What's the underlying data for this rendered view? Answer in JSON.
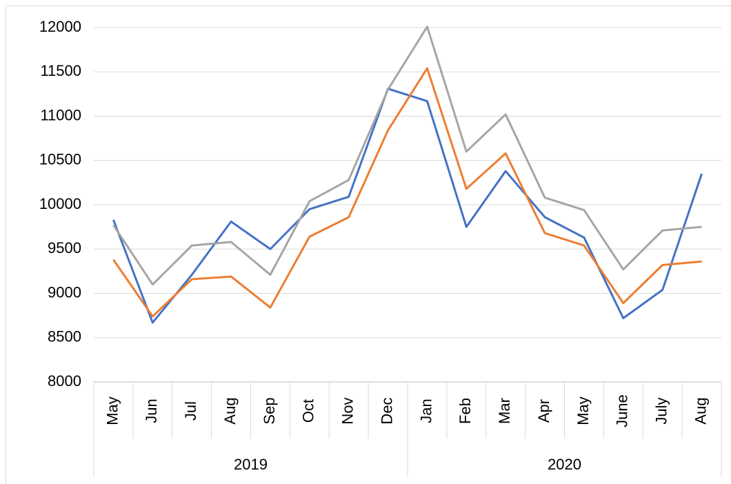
{
  "chart_data": {
    "type": "line",
    "categories": [
      "May",
      "Jun",
      "Jul",
      "Aug",
      "Sep",
      "Oct",
      "Nov",
      "Dec",
      "Jan",
      "Feb",
      "Mar",
      "Apr",
      "May",
      "June",
      "July",
      "Aug"
    ],
    "group_labels": [
      "2019",
      null,
      null,
      null,
      null,
      null,
      null,
      null,
      "2020",
      null,
      null,
      null,
      null,
      null,
      null,
      null
    ],
    "series": [
      {
        "color": "#4472c4",
        "values": [
          9830,
          8670,
          9210,
          9810,
          9500,
          9950,
          10090,
          11310,
          11170,
          9750,
          10380,
          9860,
          9630,
          8720,
          9040,
          10350
        ]
      },
      {
        "color": "#ed7d31",
        "values": [
          9380,
          8740,
          9160,
          9190,
          8840,
          9640,
          9860,
          10840,
          11540,
          10180,
          10580,
          9680,
          9540,
          8890,
          9320,
          9360
        ]
      },
      {
        "color": "#a5a5a5",
        "values": [
          9770,
          9100,
          9540,
          9580,
          9210,
          10040,
          10280,
          11300,
          12010,
          10600,
          11020,
          10080,
          9940,
          9270,
          9710,
          9750
        ]
      }
    ],
    "ylim": [
      8000,
      12000
    ],
    "yticks": [
      8000,
      8500,
      9000,
      9500,
      10000,
      10500,
      11000,
      11500,
      12000
    ],
    "grid": true
  }
}
